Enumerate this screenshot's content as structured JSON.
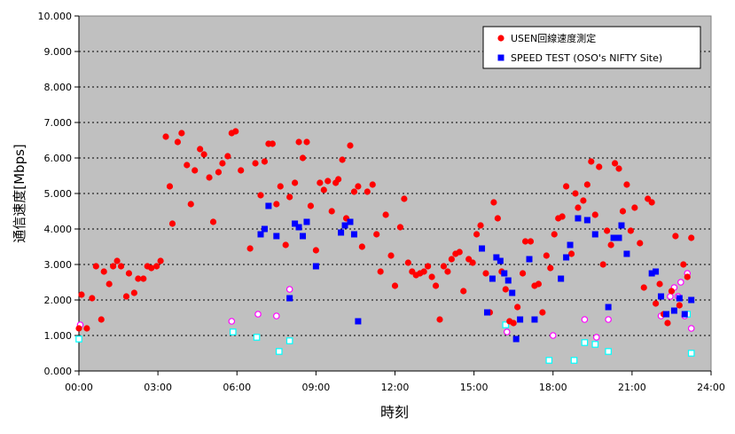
{
  "chart_data": {
    "type": "scatter",
    "title": "",
    "xlabel": "時刻",
    "ylabel": "通信速度[Mbps]",
    "xlim": [
      0,
      24
    ],
    "ylim": [
      0,
      10
    ],
    "x_ticks": [
      0,
      3,
      6,
      9,
      12,
      15,
      18,
      21,
      24
    ],
    "x_tick_labels": [
      "00:00",
      "03:00",
      "06:00",
      "09:00",
      "12:00",
      "15:00",
      "18:00",
      "21:00",
      "24:00"
    ],
    "y_ticks": [
      0,
      1,
      2,
      3,
      4,
      5,
      6,
      7,
      8,
      9,
      10
    ],
    "y_tick_labels": [
      "0.000",
      "1.000",
      "2.000",
      "3.000",
      "4.000",
      "5.000",
      "6.000",
      "7.000",
      "8.000",
      "9.000",
      "10.000"
    ],
    "grid": "horizontal-dashed",
    "legend_position": "top-right",
    "colors": {
      "plot_background": "#c0c0c0",
      "usen": "#ff0000",
      "speedtest": "#0000ff",
      "usen_alt": "#ff00ff",
      "speedtest_alt": "#00ffff"
    },
    "series": [
      {
        "name": "USEN回線速度測定",
        "marker": "circle",
        "color": "#ff0000",
        "points": [
          [
            0.0,
            1.2
          ],
          [
            0.1,
            2.15
          ],
          [
            0.3,
            1.2
          ],
          [
            0.5,
            2.05
          ],
          [
            0.65,
            2.95
          ],
          [
            0.85,
            1.45
          ],
          [
            0.95,
            2.8
          ],
          [
            1.15,
            2.45
          ],
          [
            1.3,
            2.95
          ],
          [
            1.45,
            3.1
          ],
          [
            1.6,
            2.95
          ],
          [
            1.8,
            2.1
          ],
          [
            1.9,
            2.75
          ],
          [
            2.1,
            2.2
          ],
          [
            2.25,
            2.6
          ],
          [
            2.45,
            2.6
          ],
          [
            2.6,
            2.95
          ],
          [
            2.75,
            2.9
          ],
          [
            2.95,
            2.95
          ],
          [
            3.1,
            3.1
          ],
          [
            3.3,
            6.6
          ],
          [
            3.45,
            5.2
          ],
          [
            3.55,
            4.15
          ],
          [
            3.75,
            6.45
          ],
          [
            3.9,
            6.7
          ],
          [
            4.1,
            5.8
          ],
          [
            4.25,
            4.7
          ],
          [
            4.4,
            5.65
          ],
          [
            4.6,
            6.25
          ],
          [
            4.75,
            6.1
          ],
          [
            4.95,
            5.45
          ],
          [
            5.1,
            4.2
          ],
          [
            5.3,
            5.6
          ],
          [
            5.45,
            5.85
          ],
          [
            5.65,
            6.05
          ],
          [
            5.8,
            6.7
          ],
          [
            5.95,
            6.75
          ],
          [
            6.15,
            5.65
          ],
          [
            6.5,
            3.45
          ],
          [
            6.7,
            5.85
          ],
          [
            6.9,
            4.95
          ],
          [
            7.05,
            5.9
          ],
          [
            7.2,
            6.4
          ],
          [
            7.35,
            6.4
          ],
          [
            7.5,
            4.7
          ],
          [
            7.65,
            5.2
          ],
          [
            7.85,
            3.55
          ],
          [
            8.0,
            4.9
          ],
          [
            8.2,
            5.3
          ],
          [
            8.35,
            6.45
          ],
          [
            8.5,
            6.0
          ],
          [
            8.65,
            6.45
          ],
          [
            8.8,
            4.65
          ],
          [
            9.0,
            3.4
          ],
          [
            9.15,
            5.3
          ],
          [
            9.3,
            5.1
          ],
          [
            9.45,
            5.35
          ],
          [
            9.6,
            4.5
          ],
          [
            9.75,
            5.3
          ],
          [
            9.85,
            5.4
          ],
          [
            10.0,
            5.95
          ],
          [
            10.15,
            4.3
          ],
          [
            10.3,
            6.35
          ],
          [
            10.45,
            5.05
          ],
          [
            10.6,
            5.2
          ],
          [
            10.75,
            3.5
          ],
          [
            10.95,
            5.05
          ],
          [
            11.15,
            5.25
          ],
          [
            11.3,
            3.85
          ],
          [
            11.45,
            2.8
          ],
          [
            11.65,
            4.4
          ],
          [
            11.85,
            3.25
          ],
          [
            12.0,
            2.4
          ],
          [
            12.2,
            4.05
          ],
          [
            12.35,
            4.85
          ],
          [
            12.5,
            3.05
          ],
          [
            12.65,
            2.8
          ],
          [
            12.8,
            2.7
          ],
          [
            12.95,
            2.75
          ],
          [
            13.1,
            2.8
          ],
          [
            13.25,
            2.95
          ],
          [
            13.4,
            2.65
          ],
          [
            13.55,
            2.4
          ],
          [
            13.7,
            1.45
          ],
          [
            13.85,
            2.95
          ],
          [
            14.0,
            2.8
          ],
          [
            14.15,
            3.15
          ],
          [
            14.3,
            3.3
          ],
          [
            14.45,
            3.35
          ],
          [
            14.6,
            2.25
          ],
          [
            14.8,
            3.15
          ],
          [
            14.95,
            3.05
          ],
          [
            15.1,
            3.85
          ],
          [
            15.25,
            4.1
          ],
          [
            15.45,
            2.75
          ],
          [
            15.6,
            1.65
          ],
          [
            15.75,
            4.75
          ],
          [
            15.9,
            4.3
          ],
          [
            16.05,
            2.8
          ],
          [
            16.2,
            2.3
          ],
          [
            16.35,
            1.4
          ],
          [
            16.5,
            1.35
          ],
          [
            16.65,
            1.8
          ],
          [
            16.85,
            2.75
          ],
          [
            16.95,
            3.65
          ],
          [
            17.15,
            3.65
          ],
          [
            17.3,
            2.4
          ],
          [
            17.45,
            2.45
          ],
          [
            17.6,
            1.65
          ],
          [
            17.75,
            3.25
          ],
          [
            17.9,
            2.9
          ],
          [
            18.05,
            3.85
          ],
          [
            18.2,
            4.3
          ],
          [
            18.35,
            4.35
          ],
          [
            18.5,
            5.2
          ],
          [
            18.7,
            3.3
          ],
          [
            18.85,
            5.0
          ],
          [
            18.95,
            4.6
          ],
          [
            19.15,
            4.8
          ],
          [
            19.3,
            5.25
          ],
          [
            19.45,
            5.9
          ],
          [
            19.6,
            4.4
          ],
          [
            19.75,
            5.75
          ],
          [
            19.9,
            3.0
          ],
          [
            20.05,
            3.95
          ],
          [
            20.2,
            3.55
          ],
          [
            20.35,
            5.85
          ],
          [
            20.5,
            5.7
          ],
          [
            20.65,
            4.5
          ],
          [
            20.8,
            5.25
          ],
          [
            20.95,
            3.95
          ],
          [
            21.1,
            4.6
          ],
          [
            21.3,
            3.6
          ],
          [
            21.45,
            2.35
          ],
          [
            21.6,
            4.85
          ],
          [
            21.75,
            4.75
          ],
          [
            21.9,
            1.9
          ],
          [
            22.05,
            2.45
          ],
          [
            22.2,
            1.6
          ],
          [
            22.35,
            1.35
          ],
          [
            22.5,
            2.25
          ],
          [
            22.65,
            3.8
          ],
          [
            22.8,
            1.85
          ],
          [
            22.95,
            3.0
          ],
          [
            23.1,
            2.65
          ],
          [
            23.25,
            3.75
          ]
        ]
      },
      {
        "name": "SPEED TEST (OSO's NIFTY Site)",
        "marker": "square",
        "color": "#0000ff",
        "points": [
          [
            6.9,
            3.85
          ],
          [
            7.05,
            4.0
          ],
          [
            7.2,
            4.65
          ],
          [
            7.5,
            3.8
          ],
          [
            8.0,
            2.05
          ],
          [
            8.2,
            4.15
          ],
          [
            8.35,
            4.05
          ],
          [
            8.5,
            3.8
          ],
          [
            8.65,
            4.2
          ],
          [
            9.0,
            2.95
          ],
          [
            9.95,
            3.9
          ],
          [
            10.1,
            4.1
          ],
          [
            10.3,
            4.2
          ],
          [
            10.45,
            3.85
          ],
          [
            10.6,
            1.4
          ],
          [
            15.3,
            3.45
          ],
          [
            15.5,
            1.65
          ],
          [
            15.7,
            2.6
          ],
          [
            15.85,
            3.2
          ],
          [
            16.0,
            3.1
          ],
          [
            16.15,
            2.75
          ],
          [
            16.3,
            2.55
          ],
          [
            16.45,
            2.2
          ],
          [
            16.6,
            0.9
          ],
          [
            16.75,
            1.45
          ],
          [
            17.1,
            3.15
          ],
          [
            17.3,
            1.45
          ],
          [
            18.3,
            2.6
          ],
          [
            18.5,
            3.2
          ],
          [
            18.65,
            3.55
          ],
          [
            18.95,
            4.3
          ],
          [
            19.3,
            4.25
          ],
          [
            19.6,
            3.85
          ],
          [
            20.1,
            1.8
          ],
          [
            20.3,
            3.75
          ],
          [
            20.5,
            3.75
          ],
          [
            20.6,
            4.1
          ],
          [
            20.8,
            3.3
          ],
          [
            21.75,
            2.75
          ],
          [
            21.9,
            2.8
          ],
          [
            22.1,
            2.1
          ],
          [
            22.3,
            1.6
          ],
          [
            22.6,
            1.7
          ],
          [
            22.8,
            2.05
          ],
          [
            23.0,
            1.6
          ],
          [
            23.25,
            2.0
          ]
        ]
      }
    ],
    "extra_series": [
      {
        "marker": "circle-hollow",
        "color": "#ff00ff",
        "points": [
          [
            0.05,
            1.3
          ],
          [
            5.8,
            1.4
          ],
          [
            6.8,
            1.6
          ],
          [
            7.5,
            1.55
          ],
          [
            8.0,
            2.3
          ],
          [
            16.25,
            1.1
          ],
          [
            18.0,
            1.0
          ],
          [
            19.2,
            1.45
          ],
          [
            19.65,
            0.95
          ],
          [
            20.1,
            1.45
          ],
          [
            22.1,
            1.55
          ],
          [
            22.45,
            2.1
          ],
          [
            22.6,
            2.35
          ],
          [
            22.75,
            2.1
          ],
          [
            22.85,
            2.5
          ],
          [
            23.0,
            1.55
          ],
          [
            23.1,
            2.75
          ],
          [
            23.25,
            1.2
          ]
        ]
      },
      {
        "marker": "square-hollow",
        "color": "#00ffff",
        "points": [
          [
            0.0,
            0.9
          ],
          [
            5.85,
            1.1
          ],
          [
            6.75,
            0.95
          ],
          [
            7.6,
            0.55
          ],
          [
            8.0,
            0.85
          ],
          [
            16.2,
            1.3
          ],
          [
            17.85,
            0.3
          ],
          [
            18.8,
            0.3
          ],
          [
            19.2,
            0.8
          ],
          [
            19.6,
            0.75
          ],
          [
            20.1,
            0.55
          ],
          [
            23.1,
            1.6
          ],
          [
            23.25,
            0.5
          ]
        ]
      }
    ]
  }
}
